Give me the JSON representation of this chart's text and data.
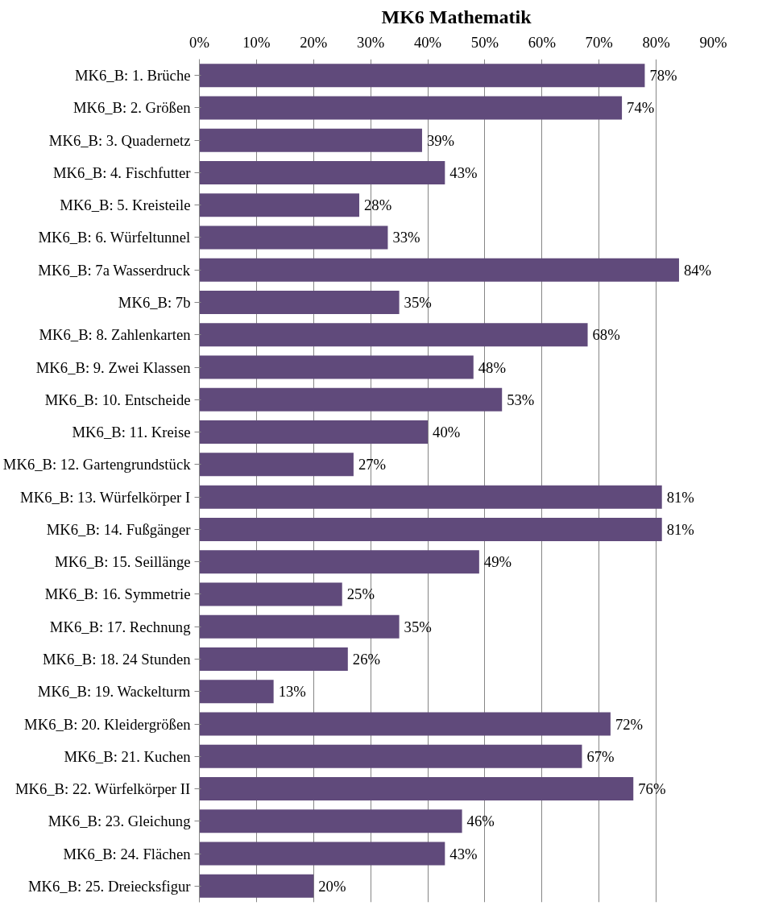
{
  "chart_data": {
    "type": "bar",
    "orientation": "horizontal",
    "title": "MK6 Mathematik",
    "categories": [
      "MK6_B: 1. Brüche",
      "MK6_B: 2. Größen",
      "MK6_B: 3. Quadernetz",
      "MK6_B: 4. Fischfutter",
      "MK6_B: 5. Kreisteile",
      "MK6_B: 6. Würfeltunnel",
      "MK6_B: 7a Wasserdruck",
      "MK6_B: 7b",
      "MK6_B: 8. Zahlenkarten",
      "MK6_B: 9. Zwei Klassen",
      "MK6_B: 10. Entscheide",
      "MK6_B: 11. Kreise",
      "MK6_B: 12. Gartengrundstück",
      "MK6_B: 13. Würfelkörper I",
      "MK6_B: 14. Fußgänger",
      "MK6_B: 15. Seillänge",
      "MK6_B: 16. Symmetrie",
      "MK6_B: 17. Rechnung",
      "MK6_B: 18. 24 Stunden",
      "MK6_B: 19. Wackelturm",
      "MK6_B: 20. Kleidergrößen",
      "MK6_B: 21. Kuchen",
      "MK6_B: 22. Würfelkörper II",
      "MK6_B: 23. Gleichung",
      "MK6_B: 24. Flächen",
      "MK6_B: 25. Dreiecksfigur"
    ],
    "values": [
      78,
      74,
      39,
      43,
      28,
      33,
      84,
      35,
      68,
      48,
      53,
      40,
      27,
      81,
      81,
      49,
      25,
      35,
      26,
      13,
      72,
      67,
      76,
      46,
      43,
      20
    ],
    "value_labels": [
      "78%",
      "74%",
      "39%",
      "43%",
      "28%",
      "33%",
      "84%",
      "35%",
      "68%",
      "48%",
      "53%",
      "40%",
      "27%",
      "81%",
      "81%",
      "49%",
      "25%",
      "35%",
      "26%",
      "13%",
      "72%",
      "67%",
      "76%",
      "46%",
      "43%",
      "20%"
    ],
    "color": "#604a7b",
    "xlim": [
      0,
      90
    ],
    "xticks": [
      {
        "value": 0,
        "label": "0%"
      },
      {
        "value": 10,
        "label": "10%"
      },
      {
        "value": 20,
        "label": "20%"
      },
      {
        "value": 30,
        "label": "30%"
      },
      {
        "value": 40,
        "label": "40%"
      },
      {
        "value": 50,
        "label": "50%"
      },
      {
        "value": 60,
        "label": "60%"
      },
      {
        "value": 70,
        "label": "70%"
      },
      {
        "value": 80,
        "label": "80%"
      },
      {
        "value": 90,
        "label": "90%"
      }
    ],
    "grid": "x"
  }
}
